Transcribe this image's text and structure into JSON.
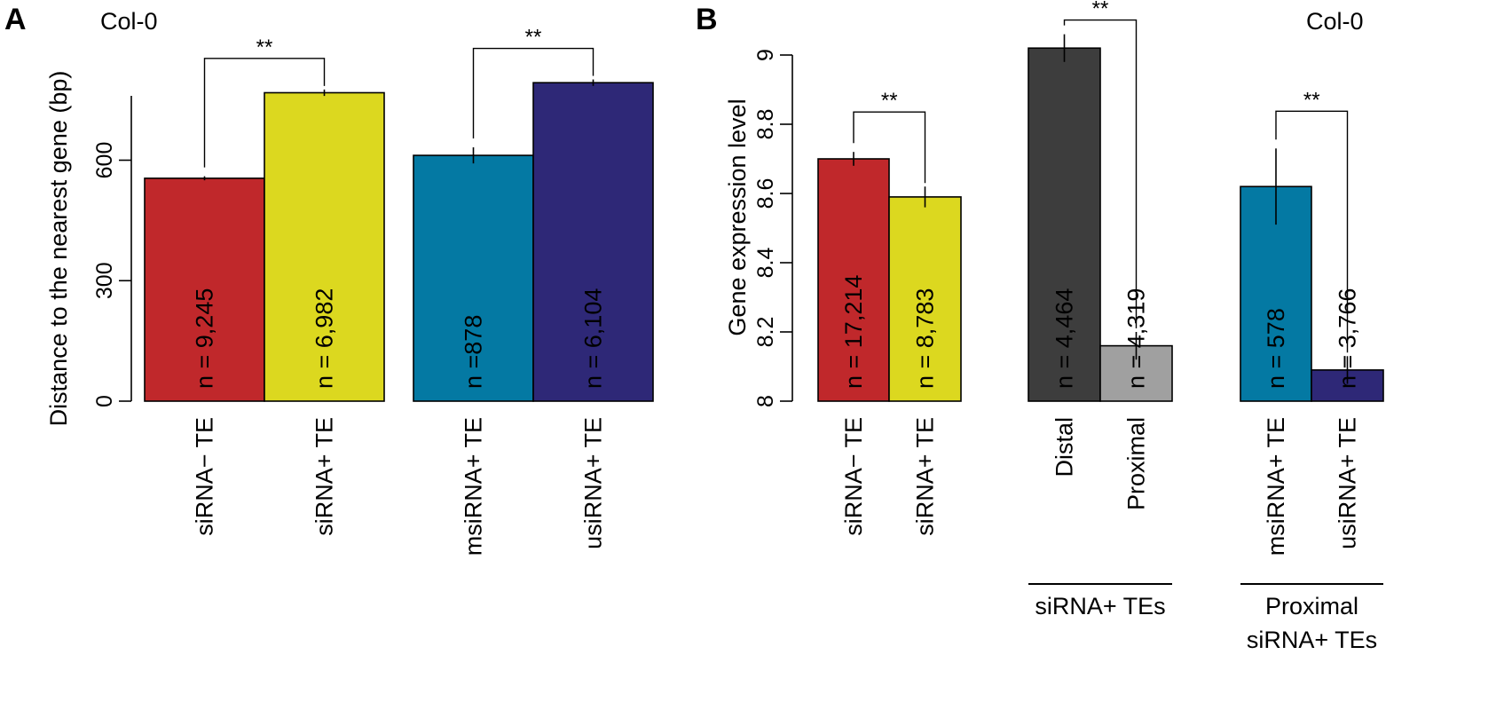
{
  "chart_data": [
    {
      "panel": "A",
      "type": "bar",
      "corner_label": "Col-0",
      "ylabel": "Distance to the nearest gene (bp)",
      "ylim": [
        0,
        800
      ],
      "yticks": [
        "0",
        "300",
        "600"
      ],
      "grid": false,
      "categories": [
        "siRNA− TE",
        "siRNA+ TE",
        "msiRNA+ TE",
        "usiRNA+ TE"
      ],
      "values": [
        555,
        768,
        612,
        793
      ],
      "error": [
        5,
        8,
        20,
        8
      ],
      "n_labels": [
        "n = 9,245",
        "n = 6,982",
        "n =878",
        "n = 6,104"
      ],
      "colors": [
        "#c0282b",
        "#dcd81f",
        "#0479a3",
        "#2e2877"
      ],
      "n_label_colors": [
        "#000000",
        "#000000",
        "#000000",
        "#ffffff"
      ],
      "significance": [
        {
          "between": [
            0,
            1
          ],
          "label": "**"
        },
        {
          "between": [
            2,
            3
          ],
          "label": "**"
        }
      ]
    },
    {
      "panel": "B",
      "type": "bar",
      "corner_label": "Col-0",
      "ylabel": "Gene expression level",
      "ylim": [
        8,
        9
      ],
      "yticks": [
        "8",
        "8.2",
        "8.4",
        "8.6",
        "8.8",
        "9"
      ],
      "grid": false,
      "categories": [
        "siRNA− TE",
        "siRNA+ TE",
        "Distal",
        "Proximal",
        "msiRNA+ TE",
        "usiRNA+ TE"
      ],
      "values": [
        8.7,
        8.59,
        9.02,
        8.16,
        8.62,
        8.09
      ],
      "error": [
        0.02,
        0.03,
        0.04,
        0.04,
        0.11,
        0.04
      ],
      "n_labels": [
        "n = 17,214",
        "n = 8,783",
        "n = 4,464",
        "n = 4,319",
        "n = 578",
        "n = 3,766"
      ],
      "colors": [
        "#c0282b",
        "#dcd81f",
        "#3d3d3d",
        "#a0a0a0",
        "#0479a3",
        "#2e2877"
      ],
      "n_label_colors": [
        "#000000",
        "#000000",
        "#ffffff",
        "#000000",
        "#000000",
        "#000000"
      ],
      "significance": [
        {
          "between": [
            0,
            1
          ],
          "label": "**"
        },
        {
          "between": [
            2,
            3
          ],
          "label": "**"
        },
        {
          "between": [
            4,
            5
          ],
          "label": "**"
        }
      ],
      "group_labels": [
        {
          "between": [
            2,
            3
          ],
          "lines": [
            "siRNA+ TEs"
          ]
        },
        {
          "between": [
            4,
            5
          ],
          "lines": [
            "Proximal",
            "siRNA+ TEs"
          ]
        }
      ]
    }
  ]
}
